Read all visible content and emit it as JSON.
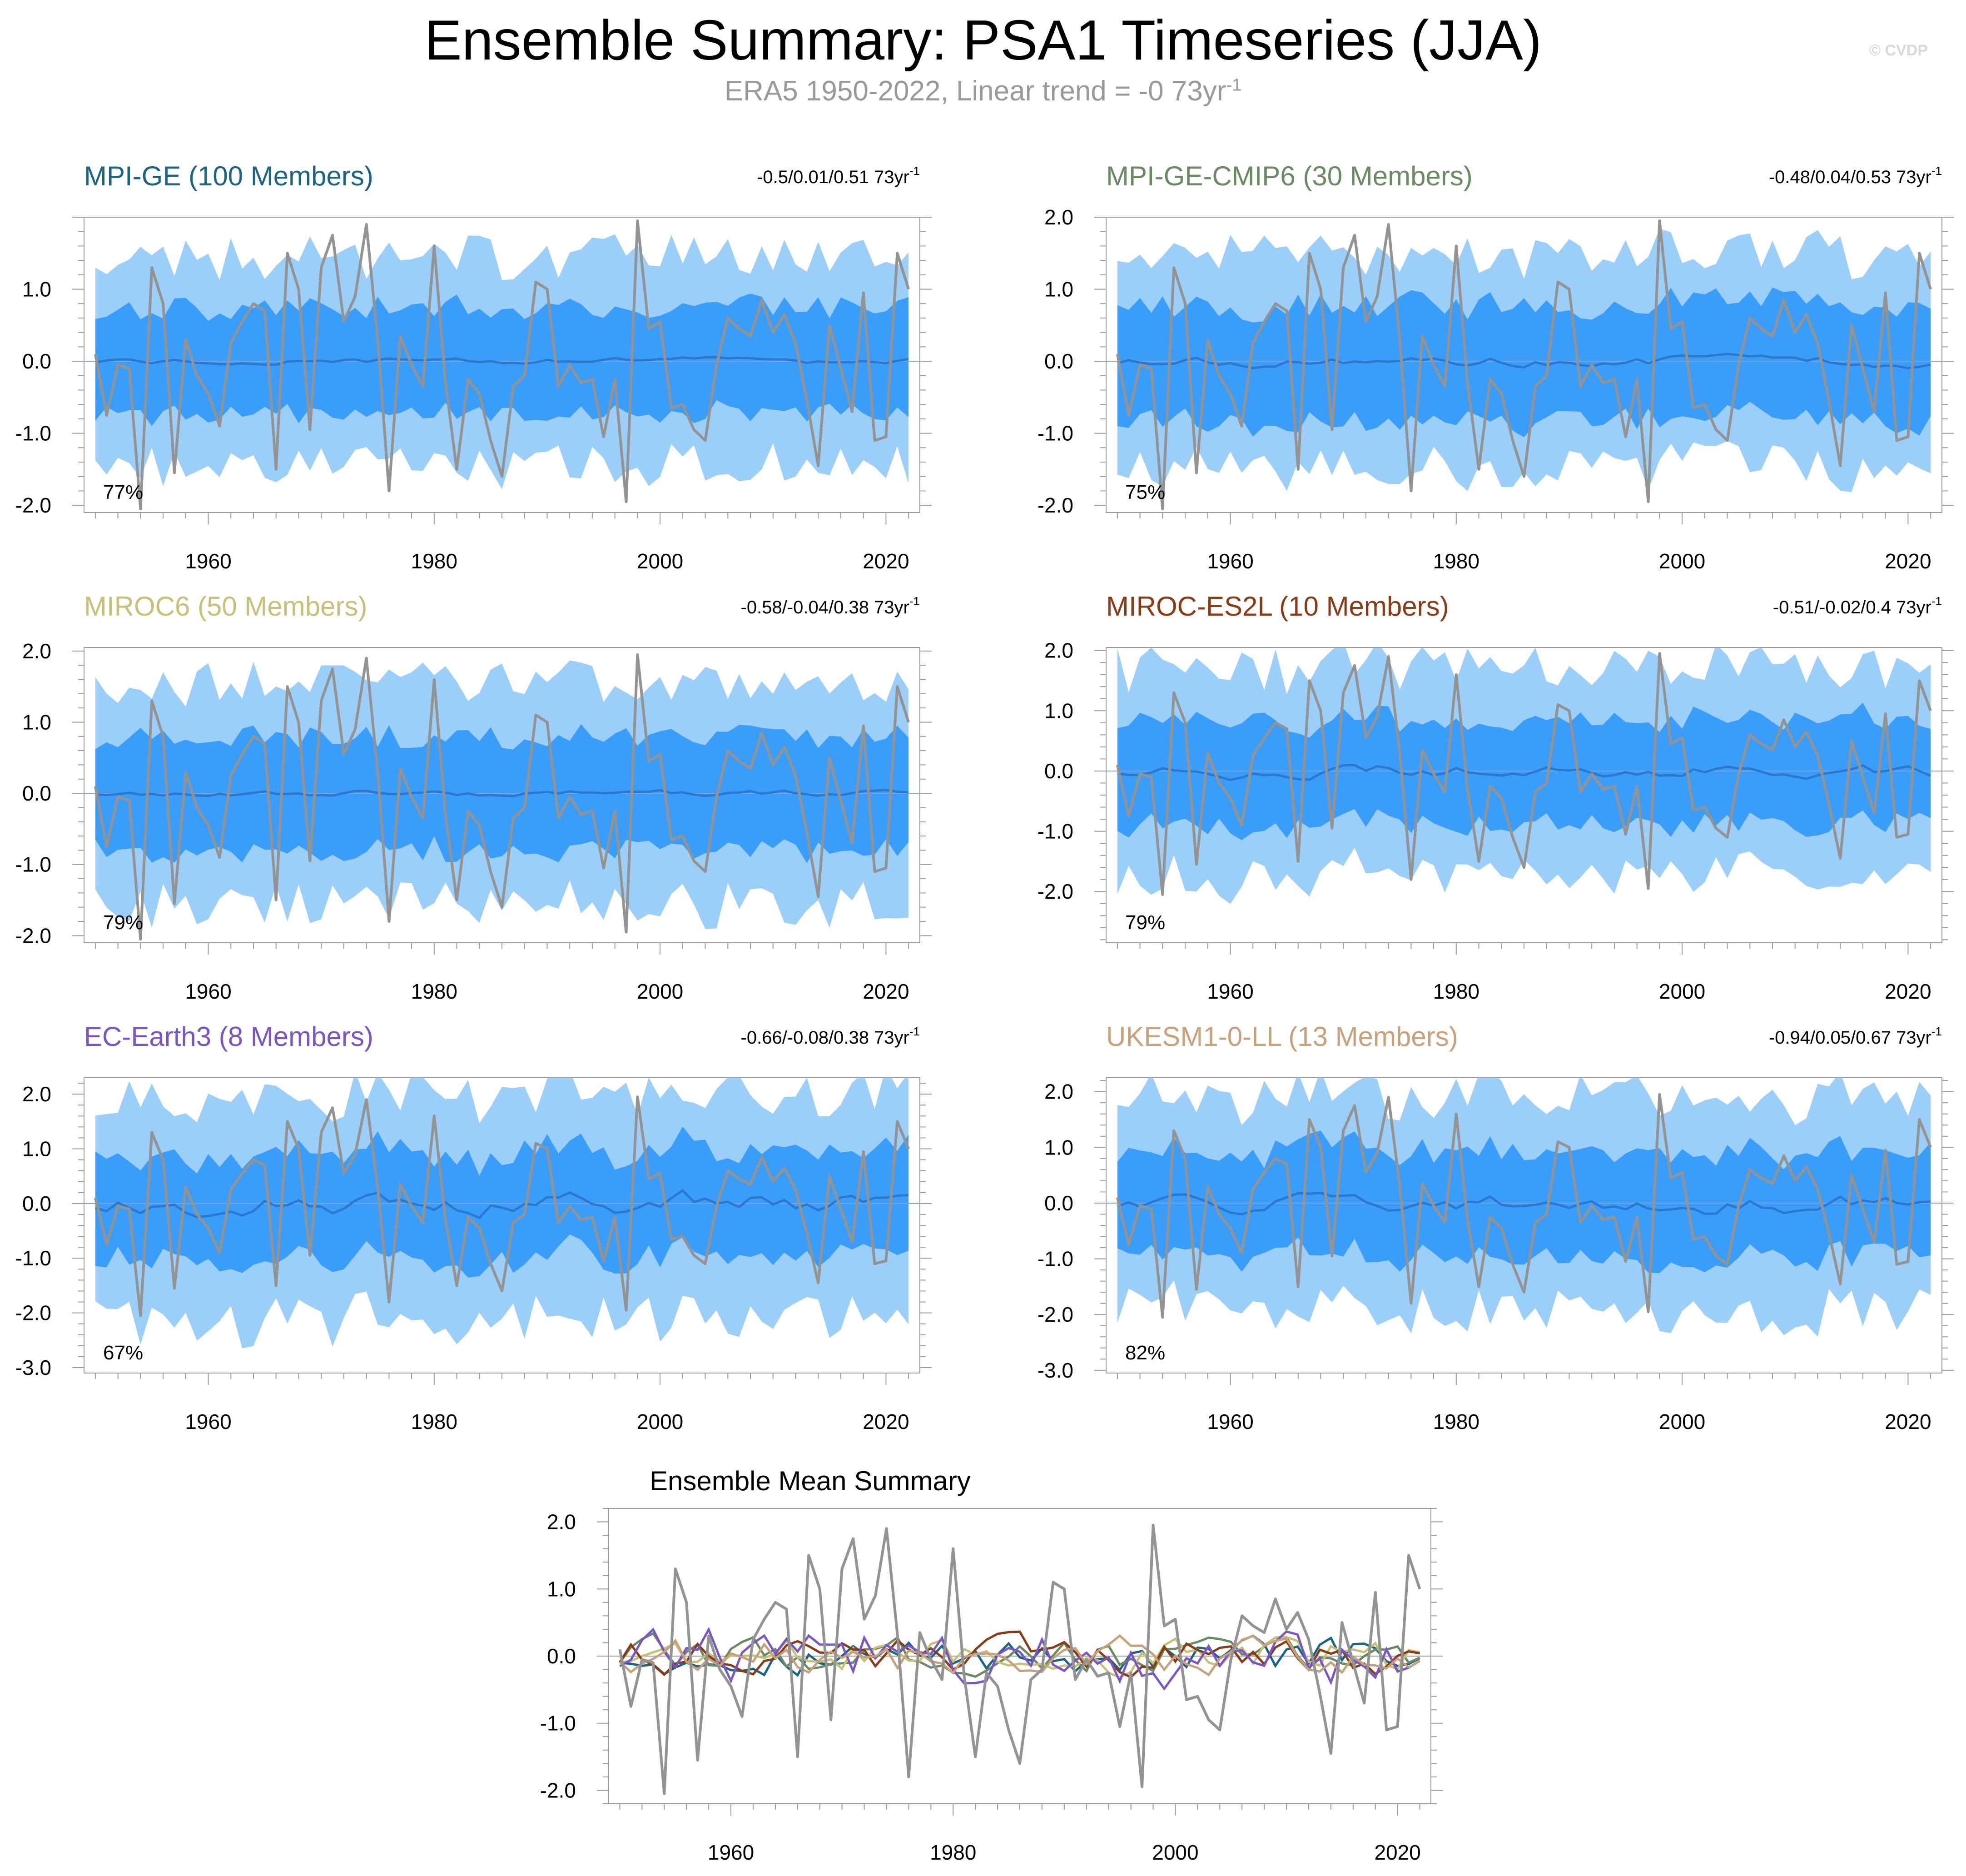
{
  "header": {
    "title": "Ensemble Summary: PSA1 Timeseries (JJA)",
    "subtitle_text": "ERA5 1950-2022, Linear trend = -0 73yr",
    "subtitle_sup": "-1",
    "watermark": "© CVDP"
  },
  "colors": {
    "outer_band": "#9ccefa",
    "inner_band": "#3a9dfa",
    "ens_mean": "#2a78d0",
    "obs": "#939393"
  },
  "chart_data": [
    {
      "type": "line",
      "id": "mpi-ge",
      "title": "MPI-GE (100 Members)",
      "title_color": "#1a6488",
      "trend": "-0.5/0.01/0.51 73yr",
      "trend_sup": "-1",
      "percent": "77%",
      "xlim": [
        1949,
        2023
      ],
      "ylim": [
        -2.1,
        2.0
      ],
      "yticks": [
        1.0,
        0.0,
        -1.0,
        -2.0
      ],
      "ytick_labels": [
        "1.0",
        "0.0",
        "-1.0",
        "-2.0"
      ],
      "xticks": [
        1960,
        1980,
        2000,
        2020
      ],
      "xtick_labels": [
        "1960",
        "1980",
        "2000",
        "2020"
      ],
      "outer_amp": 1.35,
      "inner_amp": 0.72,
      "mean_amp": 0.05,
      "seed": 11
    },
    {
      "type": "line",
      "id": "mpi-ge-cmip6",
      "title": "MPI-GE-CMIP6 (30 Members)",
      "title_color": "#6a8a64",
      "trend": "-0.48/0.04/0.53 73yr",
      "trend_sup": "-1",
      "percent": "75%",
      "xlim": [
        1949,
        2023
      ],
      "ylim": [
        -2.1,
        2.0
      ],
      "yticks": [
        2.0,
        1.0,
        0.0,
        -1.0,
        -2.0
      ],
      "ytick_labels": [
        "2.0",
        "1.0",
        "0.0",
        "-1.0",
        "-2.0"
      ],
      "xticks": [
        1960,
        1980,
        2000,
        2020
      ],
      "xtick_labels": [
        "1960",
        "1980",
        "2000",
        "2020"
      ],
      "outer_amp": 1.4,
      "inner_amp": 0.78,
      "mean_amp": 0.09,
      "seed": 23
    },
    {
      "type": "line",
      "id": "miroc6",
      "title": "MIROC6 (50 Members)",
      "title_color": "#c8c079",
      "trend": "-0.58/-0.04/0.38 73yr",
      "trend_sup": "-1",
      "percent": "79%",
      "xlim": [
        1949,
        2023
      ],
      "ylim": [
        -2.1,
        2.05
      ],
      "yticks": [
        2.0,
        1.0,
        0.0,
        -1.0,
        -2.0
      ],
      "ytick_labels": [
        "2.0",
        "1.0",
        "0.0",
        "-1.0",
        "-2.0"
      ],
      "xticks": [
        1960,
        1980,
        2000,
        2020
      ],
      "xtick_labels": [
        "1960",
        "1980",
        "2000",
        "2020"
      ],
      "outer_amp": 1.45,
      "inner_amp": 0.78,
      "mean_amp": 0.05,
      "seed": 37
    },
    {
      "type": "line",
      "id": "miroc-es2l",
      "title": "MIROC-ES2L (10 Members)",
      "title_color": "#8a3a14",
      "trend": "-0.51/-0.02/0.4 73yr",
      "trend_sup": "-1",
      "percent": "79%",
      "xlim": [
        1949,
        2023
      ],
      "ylim": [
        -2.85,
        2.05
      ],
      "yticks": [
        2.0,
        1.0,
        0.0,
        -1.0,
        -2.0
      ],
      "ytick_labels": [
        "2.0",
        "1.0",
        "0.0",
        "-1.0",
        "-2.0"
      ],
      "xticks": [
        1960,
        1980,
        2000,
        2020
      ],
      "xtick_labels": [
        "1960",
        "1980",
        "2000",
        "2020"
      ],
      "outer_amp": 1.6,
      "inner_amp": 0.85,
      "mean_amp": 0.14,
      "seed": 41
    },
    {
      "type": "line",
      "id": "ec-earth3",
      "title": "EC-Earth3 (8 Members)",
      "title_color": "#7a55c8",
      "trend": "-0.66/-0.08/0.38 73yr",
      "trend_sup": "-1",
      "percent": "67%",
      "xlim": [
        1949,
        2023
      ],
      "ylim": [
        -3.1,
        2.3
      ],
      "yticks": [
        2.0,
        1.0,
        0.0,
        -1.0,
        -2.0,
        -3.0
      ],
      "ytick_labels": [
        "2.0",
        "1.0",
        "0.0",
        "-1.0",
        "-2.0",
        "-3.0"
      ],
      "xticks": [
        1960,
        1980,
        2000,
        2020
      ],
      "xtick_labels": [
        "1960",
        "1980",
        "2000",
        "2020"
      ],
      "outer_amp": 1.9,
      "inner_amp": 0.95,
      "mean_amp": 0.28,
      "seed": 53
    },
    {
      "type": "line",
      "id": "ukesm1-0-ll",
      "title": "UKESM1-0-LL (13 Members)",
      "title_color": "#c8a07a",
      "trend": "-0.94/0.05/0.67 73yr",
      "trend_sup": "-1",
      "percent": "82%",
      "xlim": [
        1949,
        2023
      ],
      "ylim": [
        -3.05,
        2.25
      ],
      "yticks": [
        2.0,
        1.0,
        0.0,
        -1.0,
        -2.0,
        -3.0
      ],
      "ytick_labels": [
        "2.0",
        "1.0",
        "0.0",
        "-1.0",
        "-2.0",
        "-3.0"
      ],
      "xticks": [
        1960,
        1980,
        2000,
        2020
      ],
      "xtick_labels": [
        "1960",
        "1980",
        "2000",
        "2020"
      ],
      "outer_amp": 1.8,
      "inner_amp": 0.92,
      "mean_amp": 0.2,
      "seed": 67
    },
    {
      "type": "line",
      "id": "ensemble-mean-summary",
      "title": "Ensemble Mean Summary",
      "title_color": "#000000",
      "xlim": [
        1949,
        2023
      ],
      "ylim": [
        -2.2,
        2.2
      ],
      "yticks": [
        2.0,
        1.0,
        0.0,
        -1.0,
        -2.0
      ],
      "ytick_labels": [
        "2.0",
        "1.0",
        "0.0",
        "-1.0",
        "-2.0"
      ],
      "xticks": [
        1960,
        1980,
        2000,
        2020
      ],
      "xtick_labels": [
        "1960",
        "1980",
        "2000",
        "2020"
      ],
      "series_colors": [
        "#1a6488",
        "#6a8a64",
        "#c8c079",
        "#8a3a14",
        "#7a55c8",
        "#c8a07a"
      ]
    }
  ],
  "observations": {
    "name": "ERA5",
    "years": [
      1950,
      1951,
      1952,
      1953,
      1954,
      1955,
      1956,
      1957,
      1958,
      1959,
      1960,
      1961,
      1962,
      1963,
      1964,
      1965,
      1966,
      1967,
      1968,
      1969,
      1970,
      1971,
      1972,
      1973,
      1974,
      1975,
      1976,
      1977,
      1978,
      1979,
      1980,
      1981,
      1982,
      1983,
      1984,
      1985,
      1986,
      1987,
      1988,
      1989,
      1990,
      1991,
      1992,
      1993,
      1994,
      1995,
      1996,
      1997,
      1998,
      1999,
      2000,
      2001,
      2002,
      2003,
      2004,
      2005,
      2006,
      2007,
      2008,
      2009,
      2010,
      2011,
      2012,
      2013,
      2014,
      2015,
      2016,
      2017,
      2018,
      2019,
      2020,
      2021,
      2022
    ],
    "values": [
      0.1,
      -0.75,
      -0.05,
      -0.1,
      -2.05,
      1.3,
      0.8,
      -1.55,
      0.3,
      -0.2,
      -0.45,
      -0.9,
      0.25,
      0.55,
      0.8,
      0.7,
      -1.5,
      1.5,
      1.0,
      -0.95,
      1.3,
      1.75,
      0.55,
      0.9,
      1.9,
      0.3,
      -1.8,
      0.35,
      -0.05,
      -0.35,
      1.6,
      -0.3,
      -1.5,
      -0.25,
      -0.45,
      -1.1,
      -1.6,
      -0.35,
      -0.2,
      1.1,
      1.0,
      -0.35,
      -0.05,
      -0.3,
      -0.25,
      -1.05,
      -0.25,
      -1.95,
      1.95,
      0.45,
      0.55,
      -0.65,
      -0.6,
      -0.95,
      -1.1,
      -0.05,
      0.6,
      0.45,
      0.35,
      0.85,
      0.4,
      0.65,
      0.25,
      -0.55,
      -1.45,
      0.5,
      -0.1,
      -0.7,
      0.95,
      -1.1,
      -1.05,
      1.5,
      1.0
    ]
  }
}
